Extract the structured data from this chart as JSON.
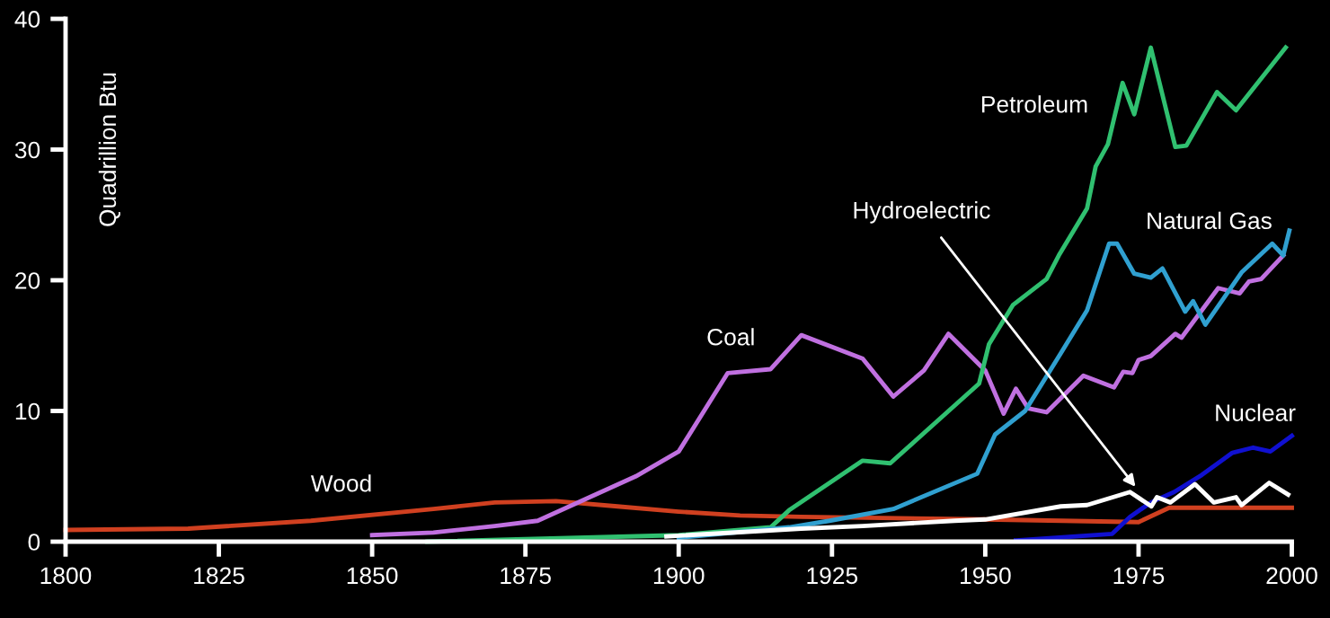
{
  "chart_data": {
    "type": "line",
    "ylabel": "Quadrillion Btu",
    "xlim": [
      1800,
      2000
    ],
    "ylim": [
      0,
      40
    ],
    "xticks": [
      1800,
      1825,
      1850,
      1875,
      1900,
      1925,
      1950,
      1975,
      2000
    ],
    "yticks": [
      0,
      10,
      20,
      30,
      40
    ],
    "grid": false,
    "legend": false,
    "marker": "none",
    "line_style": "solid",
    "series": [
      {
        "name": "Wood",
        "color": "#d04020",
        "x": [
          1800,
          1820,
          1840,
          1860,
          1870,
          1880,
          1890,
          1900,
          1910,
          1920,
          1950,
          1975,
          1980,
          2000
        ],
        "values": [
          0.9,
          1.0,
          1.6,
          2.5,
          3.0,
          3.1,
          2.7,
          2.3,
          2.0,
          1.9,
          1.7,
          1.5,
          2.6,
          2.6
        ]
      },
      {
        "name": "Coal",
        "color": "#c070e0",
        "x": [
          1850,
          1860,
          1870,
          1877,
          1893,
          1900,
          1908,
          1915,
          1920,
          1930,
          1935,
          1940,
          1944,
          1950,
          1953,
          1955,
          1957,
          1960,
          1966,
          1971,
          1972.5,
          1974,
          1975,
          1977,
          1981,
          1982,
          1988,
          1991.5,
          1993,
          1995,
          1998.6
        ],
        "values": [
          0.5,
          0.7,
          1.2,
          1.6,
          5.0,
          6.9,
          12.9,
          13.2,
          15.8,
          14.0,
          11.1,
          13.1,
          15.9,
          13.1,
          9.8,
          11.7,
          10.2,
          9.9,
          12.7,
          11.8,
          13.0,
          12.9,
          13.9,
          14.2,
          15.9,
          15.6,
          19.4,
          19.0,
          19.9,
          20.1,
          21.9
        ]
      },
      {
        "name": "Petroleum",
        "color": "#30c070",
        "x": [
          1859,
          1900,
          1915,
          1918,
          1930,
          1934.5,
          1949,
          1950.6,
          1954.5,
          1960,
          1962,
          1966.6,
          1968,
          1970,
          1972.4,
          1974.3,
          1977,
          1981,
          1982.8,
          1987.8,
          1990.9,
          1999
        ],
        "values": [
          0.0,
          0.5,
          1.1,
          2.4,
          6.2,
          6.0,
          12.1,
          15.1,
          18.1,
          20.1,
          21.9,
          25.5,
          28.7,
          30.4,
          35.1,
          32.7,
          37.8,
          30.2,
          30.3,
          34.4,
          33.0,
          37.8
        ]
      },
      {
        "name": "Natural Gas",
        "color": "#30a0d0",
        "x": [
          1900,
          1918,
          1924.6,
          1935,
          1948.7,
          1951.6,
          1956.5,
          1962.3,
          1966.6,
          1970.2,
          1971.5,
          1974.3,
          1977,
          1978.9,
          1982.6,
          1983.9,
          1985.9,
          1991.8,
          1996.8,
          1998.6,
          1999.6
        ],
        "values": [
          0.3,
          1.1,
          1.6,
          2.5,
          5.2,
          8.2,
          10.0,
          14.4,
          17.7,
          22.8,
          22.8,
          20.5,
          20.2,
          20.9,
          17.6,
          18.4,
          16.6,
          20.6,
          22.8,
          21.9,
          23.8
        ]
      },
      {
        "name": "Nuclear",
        "color": "#1010d0",
        "x": [
          1955,
          1970.7,
          1973.6,
          1977,
          1980.8,
          1985.3,
          1990.3,
          1993.7,
          1996.5,
          2000
        ],
        "values": [
          0.1,
          0.6,
          1.9,
          3.0,
          3.8,
          5.1,
          6.8,
          7.2,
          6.9,
          8.1
        ]
      },
      {
        "name": "Hydroelectric",
        "color": "#ffffff",
        "x": [
          1898,
          1920,
          1930,
          1945,
          1950,
          1962.3,
          1966.6,
          1973.6,
          1977.1,
          1978,
          1980.2,
          1984.2,
          1987.3,
          1990.9,
          1991.8,
          1996.3,
          1999.4
        ],
        "values": [
          0.4,
          1.0,
          1.2,
          1.6,
          1.7,
          2.7,
          2.8,
          3.8,
          2.7,
          3.4,
          3.0,
          4.4,
          3.0,
          3.4,
          2.8,
          4.5,
          3.6
        ]
      }
    ]
  }
}
